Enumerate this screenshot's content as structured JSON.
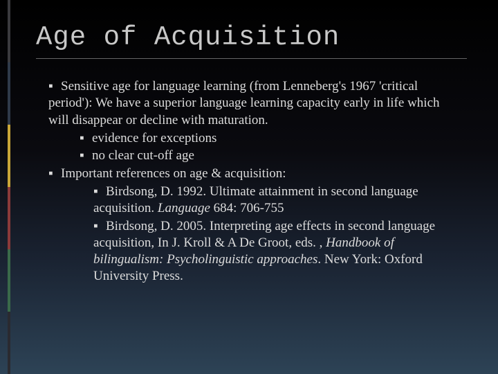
{
  "accent_colors": [
    "#3a3a3e",
    "#2f3a4a",
    "#c9a638",
    "#8a3a3a",
    "#3a6a4a",
    "#2a2a30"
  ],
  "title": "Age of Acquisition",
  "bullets": {
    "b1a": "Sensitive age for language learning (from Lenneberg's 1967 'critical period'):  We have a superior language learning capacity early in life which will disappear or decline with maturation.",
    "b2a": "evidence for exceptions",
    "b2b": "no clear cut-off age",
    "b1b": "Important references on age & acquisition:",
    "b3a_pre": "Birdsong, D. 1992. Ultimate attainment in second language acquisition. ",
    "b3a_it": "Language",
    "b3a_post": " 684: 706-755",
    "b3b_pre": "Birdsong, D. 2005. Interpreting age effects in second language acquisition, In J. Kroll & A De Groot, eds. , ",
    "b3b_it": "Handbook of bilingualism: Psycholinguistic approaches",
    "b3b_post": ". New York: Oxford University Press."
  },
  "bullet_glyph": "▪"
}
